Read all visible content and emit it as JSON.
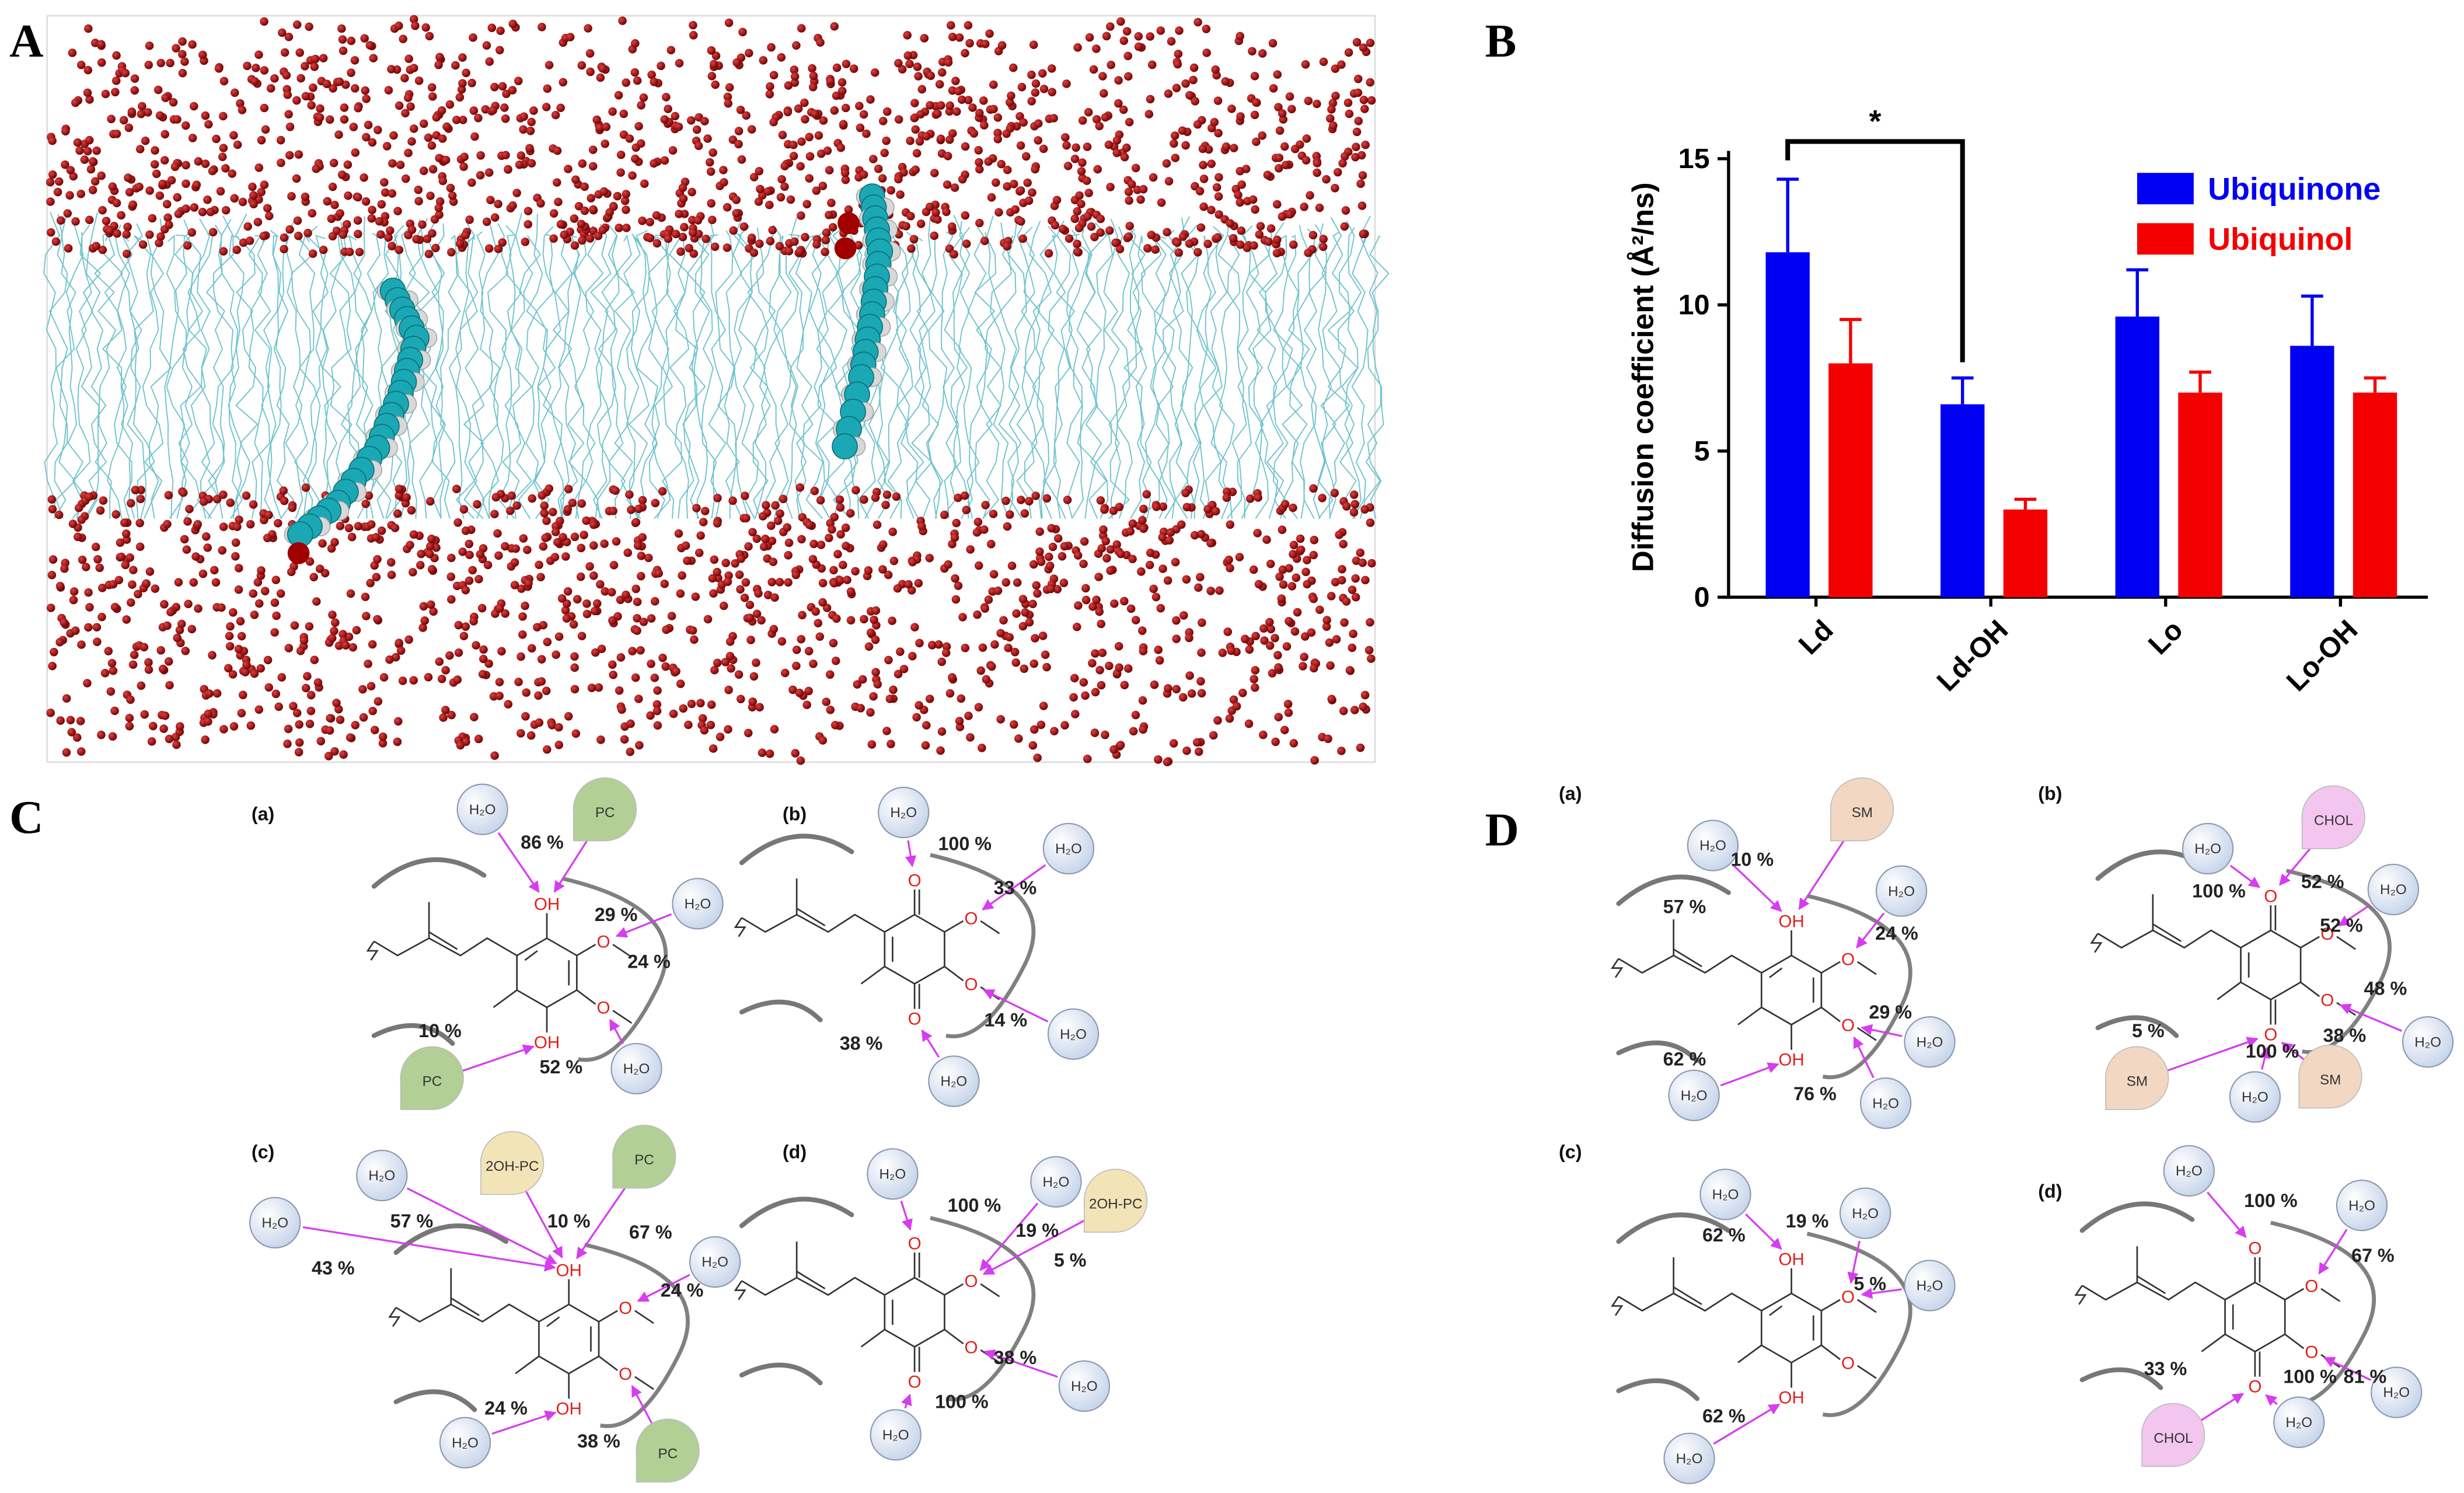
{
  "panel_labels": {
    "a": "A",
    "b": "B",
    "c": "C",
    "d": "D"
  },
  "chart_data": {
    "type": "bar",
    "y_label": "Diffusion coefficient (Å²/ns)",
    "categories": [
      "Ld",
      "Ld-OH",
      "Lo",
      "Lo-OH"
    ],
    "series": [
      {
        "name": "Ubiquinone",
        "color": "#0000f5",
        "values": [
          11.8,
          6.6,
          9.6,
          8.6
        ],
        "errors": [
          2.5,
          0.9,
          1.6,
          1.7
        ]
      },
      {
        "name": "Ubiquinol",
        "color": "#f50000",
        "values": [
          8.0,
          3.0,
          7.0,
          7.0
        ],
        "errors": [
          1.5,
          0.35,
          0.7,
          0.5
        ]
      }
    ],
    "ylim": [
      0,
      15
    ],
    "yticks": [
      0,
      5,
      10,
      15
    ],
    "annotation": "*",
    "legend": "upper right"
  },
  "panel_c": {
    "subpanels": [
      {
        "label": "(a)",
        "atoms": [
          "OH",
          "OH",
          "O",
          "O"
        ],
        "percents": [
          "86 %",
          "29 %",
          "24 %",
          "10 %",
          "52 %"
        ],
        "bubbles": [
          {
            "text": "H₂O",
            "color": "#dfe8f5"
          },
          {
            "text": "PC",
            "color": "#b2d095"
          },
          {
            "text": "H₂O",
            "color": "#dfe8f5"
          },
          {
            "text": "PC",
            "color": "#b2d095"
          },
          {
            "text": "H₂O",
            "color": "#dfe8f5"
          }
        ]
      },
      {
        "label": "(b)",
        "atoms": [
          "O",
          "O",
          "O",
          "O"
        ],
        "percents": [
          "100 %",
          "33 %",
          "14 %",
          "38 %"
        ],
        "bubbles": [
          {
            "text": "H₂O",
            "color": "#dfe8f5"
          },
          {
            "text": "H₂O",
            "color": "#dfe8f5"
          },
          {
            "text": "H₂O",
            "color": "#dfe8f5"
          },
          {
            "text": "H₂O",
            "color": "#dfe8f5"
          }
        ]
      },
      {
        "label": "(c)",
        "atoms": [
          "OH",
          "OH",
          "O",
          "O"
        ],
        "percents": [
          "57 %",
          "43 %",
          "10 %",
          "67 %",
          "24 %",
          "24 %",
          "38 %"
        ],
        "bubbles": [
          {
            "text": "H₂O",
            "color": "#dfe8f5"
          },
          {
            "text": "H₂O",
            "color": "#dfe8f5"
          },
          {
            "text": "2OH-PC",
            "color": "#f3e4b8"
          },
          {
            "text": "PC",
            "color": "#b2d095"
          },
          {
            "text": "H₂O",
            "color": "#dfe8f5"
          },
          {
            "text": "H₂O",
            "color": "#dfe8f5"
          },
          {
            "text": "PC",
            "color": "#b2d095"
          }
        ]
      },
      {
        "label": "(d)",
        "atoms": [
          "O",
          "O",
          "O",
          "O"
        ],
        "percents": [
          "100 %",
          "19 %",
          "5 %",
          "38 %",
          "100 %"
        ],
        "bubbles": [
          {
            "text": "H₂O",
            "color": "#dfe8f5"
          },
          {
            "text": "H₂O",
            "color": "#dfe8f5"
          },
          {
            "text": "2OH-PC",
            "color": "#f3e4b8"
          },
          {
            "text": "H₂O",
            "color": "#dfe8f5"
          },
          {
            "text": "H₂O",
            "color": "#dfe8f5"
          }
        ]
      }
    ]
  },
  "panel_d": {
    "subpanels": [
      {
        "label": "(a)",
        "atoms": [
          "OH",
          "OH",
          "O",
          "O"
        ],
        "percents": [
          "10 %",
          "57 %",
          "24 %",
          "29 %",
          "62 %",
          "76 %"
        ],
        "bubbles": [
          {
            "text": "H₂O",
            "color": "#dfe8f5"
          },
          {
            "text": "SM",
            "color": "#f2d8c2"
          },
          {
            "text": "H₂O",
            "color": "#dfe8f5"
          },
          {
            "text": "H₂O",
            "color": "#dfe8f5"
          },
          {
            "text": "H₂O",
            "color": "#dfe8f5"
          },
          {
            "text": "H₂O",
            "color": "#dfe8f5"
          }
        ]
      },
      {
        "label": "(b)",
        "atoms": [
          "O",
          "O",
          "O",
          "O"
        ],
        "percents": [
          "100 %",
          "52 %",
          "52 %",
          "48 %",
          "5 %",
          "38 %",
          "100 %"
        ],
        "bubbles": [
          {
            "text": "H₂O",
            "color": "#dfe8f5"
          },
          {
            "text": "CHOL",
            "color": "#f2c6ee"
          },
          {
            "text": "H₂O",
            "color": "#dfe8f5"
          },
          {
            "text": "H₂O",
            "color": "#dfe8f5"
          },
          {
            "text": "SM",
            "color": "#f2d8c2"
          },
          {
            "text": "H₂O",
            "color": "#dfe8f5"
          },
          {
            "text": "SM",
            "color": "#f2d8c2"
          }
        ]
      },
      {
        "label": "(c)",
        "atoms": [
          "OH",
          "OH",
          "O",
          "O"
        ],
        "percents": [
          "62 %",
          "19 %",
          "5 %",
          "62 %"
        ],
        "bubbles": [
          {
            "text": "H₂O",
            "color": "#dfe8f5"
          },
          {
            "text": "H₂O",
            "color": "#dfe8f5"
          },
          {
            "text": "H₂O",
            "color": "#dfe8f5"
          },
          {
            "text": "H₂O",
            "color": "#dfe8f5"
          }
        ]
      },
      {
        "label": "(d)",
        "atoms": [
          "O",
          "O",
          "O",
          "O"
        ],
        "percents": [
          "100 %",
          "67 %",
          "81 %",
          "33 %",
          "100 %"
        ],
        "bubbles": [
          {
            "text": "H₂O",
            "color": "#dfe8f5"
          },
          {
            "text": "H₂O",
            "color": "#dfe8f5"
          },
          {
            "text": "H₂O",
            "color": "#dfe8f5"
          },
          {
            "text": "CHOL",
            "color": "#f2c6ee"
          },
          {
            "text": "H₂O",
            "color": "#dfe8f5"
          }
        ]
      }
    ]
  }
}
